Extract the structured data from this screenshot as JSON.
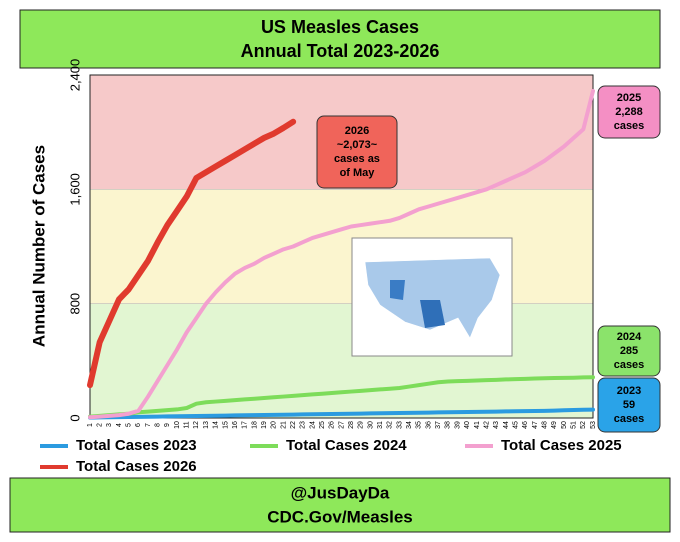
{
  "chart_data": {
    "type": "line",
    "title": "US Measles Cases",
    "subtitle": "Annual Total 2023-2026",
    "y_label": "Annual Number of Cases",
    "footer": [
      "@JusDayDa",
      "CDC.Gov/Measles"
    ],
    "x": [
      1,
      2,
      3,
      4,
      5,
      6,
      7,
      8,
      9,
      10,
      11,
      12,
      13,
      14,
      15,
      16,
      17,
      18,
      19,
      20,
      21,
      22,
      23,
      24,
      25,
      26,
      27,
      28,
      29,
      30,
      31,
      32,
      33,
      34,
      35,
      36,
      37,
      38,
      39,
      40,
      41,
      42,
      43,
      44,
      45,
      46,
      47,
      48,
      49,
      50,
      51,
      52,
      53
    ],
    "xlim": [
      1,
      53
    ],
    "ylim": [
      0,
      2400
    ],
    "yticks": [
      0,
      800,
      {
        "value": 1600,
        "label": "1,600"
      },
      {
        "value": 2400,
        "label": "2,400"
      }
    ],
    "bands": [
      {
        "from": 0,
        "to": 800,
        "color": "#e2f6d2"
      },
      {
        "from": 800,
        "to": 1600,
        "color": "#fbf5cf"
      },
      {
        "from": 1600,
        "to": 2400,
        "color": "#f6c9c9"
      }
    ],
    "series": [
      {
        "name": "Total Cases 2023",
        "color": "#2b9be0",
        "values": [
          3,
          4,
          5,
          6,
          7,
          8,
          9,
          10,
          11,
          12,
          13,
          14,
          15,
          16,
          17,
          18,
          19,
          20,
          21,
          22,
          23,
          24,
          25,
          26,
          27,
          28,
          29,
          30,
          31,
          32,
          33,
          34,
          35,
          36,
          37,
          38,
          39,
          40,
          41,
          42,
          43,
          44,
          45,
          46,
          47,
          48,
          49,
          50,
          52,
          54,
          56,
          58,
          59
        ]
      },
      {
        "name": "Total Cases 2024",
        "color": "#7ddc5a",
        "values": [
          10,
          15,
          20,
          25,
          30,
          40,
          45,
          50,
          55,
          60,
          70,
          100,
          110,
          115,
          120,
          125,
          130,
          135,
          140,
          145,
          150,
          155,
          160,
          165,
          170,
          175,
          180,
          185,
          190,
          195,
          200,
          205,
          210,
          220,
          230,
          240,
          250,
          255,
          258,
          260,
          262,
          265,
          267,
          270,
          272,
          274,
          276,
          278,
          280,
          281,
          282,
          284,
          285
        ]
      },
      {
        "name": "Total Cases 2025",
        "color": "#f3a0cf",
        "values": [
          5,
          10,
          15,
          20,
          30,
          50,
          150,
          260,
          370,
          480,
          600,
          700,
          800,
          880,
          950,
          1010,
          1050,
          1080,
          1120,
          1150,
          1180,
          1200,
          1230,
          1260,
          1280,
          1300,
          1320,
          1340,
          1350,
          1360,
          1370,
          1380,
          1400,
          1430,
          1460,
          1480,
          1500,
          1520,
          1540,
          1560,
          1580,
          1600,
          1630,
          1660,
          1690,
          1720,
          1760,
          1800,
          1850,
          1900,
          1960,
          2020,
          2288
        ]
      },
      {
        "name": "Total Cases 2026",
        "color": "#e03a2e",
        "values": [
          230,
          530,
          680,
          830,
          900,
          1000,
          1100,
          1230,
          1350,
          1450,
          1550,
          1680,
          1720,
          1760,
          1800,
          1840,
          1880,
          1920,
          1960,
          1990,
          2030,
          2073,
          null,
          null,
          null,
          null,
          null,
          null,
          null,
          null,
          null,
          null,
          null,
          null,
          null,
          null,
          null,
          null,
          null,
          null,
          null,
          null,
          null,
          null,
          null,
          null,
          null,
          null,
          null,
          null,
          null,
          null,
          null
        ]
      }
    ],
    "annotations": [
      {
        "lines": [
          "2026",
          "~2,073~",
          "cases as",
          "of May"
        ],
        "color": "#f0645a"
      },
      {
        "lines": [
          "2025",
          "2,288",
          "cases"
        ],
        "color": "#f48fc4"
      },
      {
        "lines": [
          "2024",
          "285",
          "cases"
        ],
        "color": "#8be36b"
      },
      {
        "lines": [
          "2023",
          "59",
          "cases"
        ],
        "color": "#2aa3e8"
      }
    ]
  }
}
